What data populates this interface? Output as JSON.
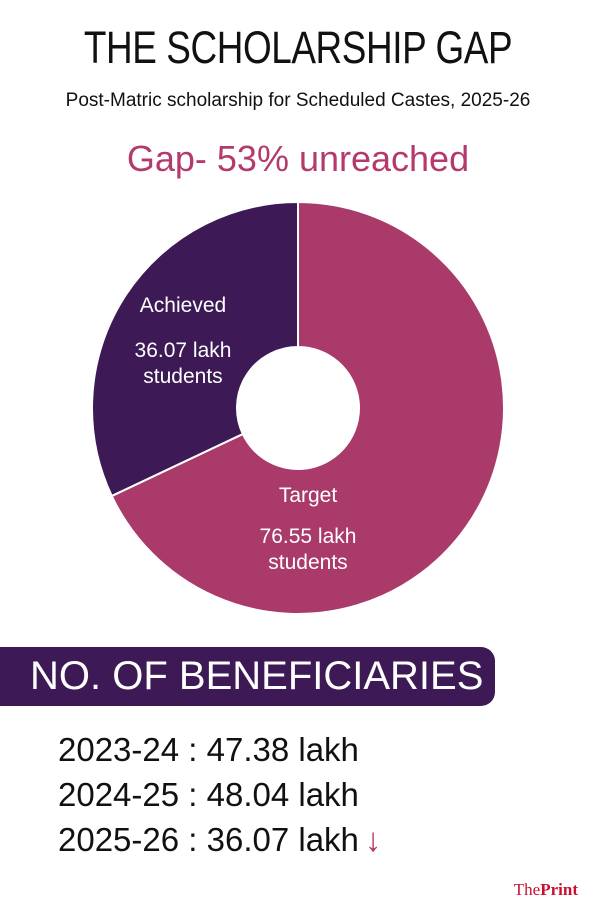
{
  "header": {
    "title": "THE SCHOLARSHIP GAP",
    "subtitle": "Post-Matric scholarship for Scheduled Castes, 2025-26",
    "gap_text": "Gap- 53% unreached"
  },
  "chart_data": {
    "type": "pie",
    "donut": true,
    "title": "THE SCHOLARSHIP GAP",
    "subtitle": "Post-Matric scholarship for Scheduled Castes, 2025-26",
    "unit": "lakh students",
    "slices": [
      {
        "label": "Achieved",
        "value": 36.07,
        "value_text": "36.07 lakh",
        "unit_text": "students",
        "color": "#3d1a55"
      },
      {
        "label": "Target",
        "value": 76.55,
        "value_text": "76.55 lakh",
        "unit_text": "students",
        "color": "#a93a6a"
      }
    ]
  },
  "beneficiaries": {
    "heading": "NO. OF BENEFICIARIES",
    "rows": [
      {
        "text": "2023-24 : 47.38 lakh",
        "year": "2023-24",
        "value": 47.38
      },
      {
        "text": "2024-25 : 48.04 lakh",
        "year": "2024-25",
        "value": 48.04
      },
      {
        "text": "2025-26 : 36.07 lakh",
        "year": "2025-26",
        "value": 36.07,
        "arrow": "↓"
      }
    ],
    "arrow_color": "#b43a6e",
    "banner_color": "#3d1a55"
  },
  "brand": {
    "prefix": "The",
    "name": "Print"
  }
}
